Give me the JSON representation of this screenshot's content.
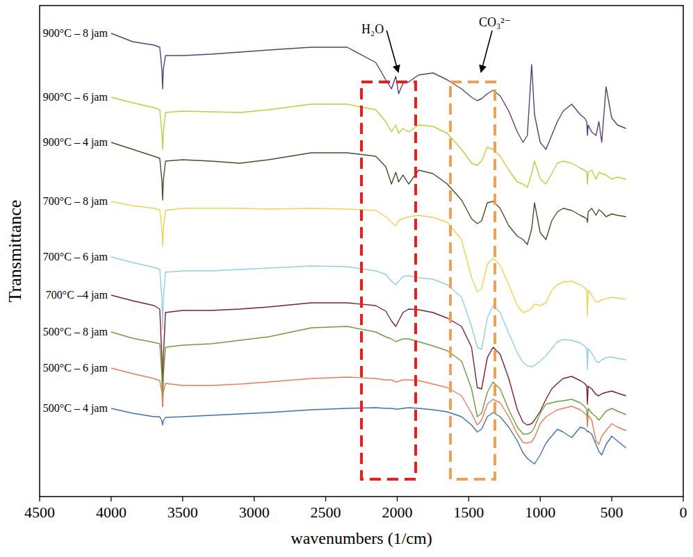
{
  "chart_data": {
    "type": "line",
    "x_label": "wavenumbers (1/cm)",
    "y_label": "Transmittance",
    "xlim": [
      4500,
      0
    ],
    "xticks": [
      4500,
      4000,
      3500,
      3000,
      2500,
      2000,
      1500,
      1000,
      500,
      0
    ],
    "ylim": [
      0,
      707
    ],
    "tick_labels": "x",
    "grid": false,
    "x": [
      4000,
      3850,
      3700,
      3660,
      3645,
      3640,
      3635,
      3620,
      3500,
      3300,
      3100,
      2900,
      2600,
      2350,
      2150,
      2080,
      2040,
      2010,
      1990,
      1960,
      1920,
      1850,
      1750,
      1650,
      1550,
      1480,
      1440,
      1410,
      1370,
      1330,
      1280,
      1220,
      1160,
      1120,
      1090,
      1060,
      1040,
      1000,
      960,
      920,
      880,
      840,
      780,
      720,
      690,
      675,
      670,
      665,
      640,
      610,
      590,
      570,
      540,
      500,
      460,
      400
    ],
    "series": [
      {
        "name": "900°C – 8 jam",
        "color": "#5a3d78",
        "values": [
          667,
          655,
          650,
          647,
          615,
          587,
          615,
          635,
          635,
          637,
          640,
          643,
          647,
          647,
          625,
          600,
          587,
          605,
          580,
          595,
          597,
          607,
          610,
          600,
          587,
          575,
          570,
          573,
          580,
          585,
          577,
          555,
          525,
          510,
          520,
          622,
          550,
          510,
          500,
          520,
          540,
          555,
          565,
          550,
          545,
          540,
          520,
          535,
          525,
          520,
          540,
          510,
          590,
          545,
          535,
          530
        ]
      },
      {
        "name": "900°C – 6 jam",
        "color": "#b5d335",
        "values": [
          575,
          567,
          560,
          557,
          525,
          500,
          525,
          553,
          555,
          554,
          553,
          557,
          565,
          565,
          557,
          540,
          525,
          535,
          523,
          530,
          525,
          535,
          533,
          523,
          500,
          480,
          477,
          483,
          503,
          500,
          490,
          470,
          453,
          450,
          445,
          465,
          483,
          457,
          450,
          465,
          480,
          483,
          480,
          473,
          470,
          467,
          450,
          467,
          470,
          457,
          467,
          465,
          463,
          457,
          460,
          457
        ]
      },
      {
        "name": "900°C – 4 jam",
        "color": "#4b4b2c",
        "values": [
          510,
          500,
          490,
          487,
          455,
          427,
          455,
          483,
          485,
          483,
          480,
          485,
          495,
          495,
          490,
          475,
          450,
          467,
          453,
          463,
          450,
          470,
          465,
          450,
          427,
          400,
          393,
          397,
          423,
          425,
          415,
          390,
          375,
          370,
          363,
          385,
          423,
          380,
          370,
          397,
          410,
          415,
          412,
          405,
          402,
          400,
          395,
          410,
          415,
          405,
          413,
          410,
          403,
          407,
          405,
          403
        ]
      },
      {
        "name": "700°C – 8 jam",
        "color": "#f2d24a",
        "values": [
          425,
          419,
          415,
          413,
          385,
          360,
          385,
          412,
          415,
          415,
          415,
          414,
          415,
          414,
          412,
          403,
          395,
          390,
          397,
          400,
          403,
          405,
          402,
          395,
          370,
          315,
          295,
          299,
          335,
          343,
          333,
          305,
          275,
          265,
          267,
          271,
          277,
          275,
          279,
          297,
          305,
          309,
          310,
          305,
          301,
          297,
          260,
          297,
          290,
          280,
          281,
          283,
          285,
          287,
          286,
          284
        ]
      },
      {
        "name": "700°C – 6 jam",
        "color": "#8fcfec",
        "values": [
          345,
          337,
          330,
          327,
          285,
          240,
          285,
          323,
          325,
          325,
          327,
          329,
          332,
          331,
          325,
          320,
          310,
          305,
          310,
          317,
          318,
          315,
          313,
          305,
          287,
          245,
          215,
          212,
          257,
          275,
          265,
          235,
          207,
          193,
          188,
          187,
          189,
          195,
          203,
          213,
          223,
          226,
          225,
          221,
          217,
          213,
          183,
          213,
          207,
          195,
          193,
          197,
          200,
          201,
          199,
          197
        ]
      },
      {
        "name": "700°C –4 jam",
        "color": "#7b1e33",
        "values": [
          290,
          282,
          275,
          270,
          200,
          130,
          200,
          265,
          268,
          268,
          270,
          273,
          279,
          279,
          275,
          267,
          253,
          245,
          253,
          265,
          270,
          269,
          265,
          257,
          245,
          215,
          157,
          155,
          200,
          215,
          205,
          170,
          125,
          107,
          103,
          105,
          110,
          123,
          140,
          155,
          163,
          170,
          173,
          167,
          163,
          159,
          133,
          159,
          155,
          147,
          145,
          148,
          150,
          152,
          149,
          145
        ]
      },
      {
        "name": "500°C – 8 jam",
        "color": "#6e9c3c",
        "values": [
          237,
          228,
          222,
          220,
          175,
          130,
          175,
          215,
          218,
          220,
          225,
          230,
          243,
          245,
          237,
          230,
          227,
          223,
          225,
          227,
          227,
          223,
          217,
          210,
          195,
          155,
          115,
          120,
          150,
          165,
          155,
          125,
          100,
          90,
          90,
          93,
          100,
          120,
          133,
          135,
          137,
          138,
          140,
          135,
          130,
          125,
          103,
          127,
          120,
          115,
          110,
          115,
          123,
          127,
          123,
          118
        ]
      },
      {
        "name": "500°C – 6 jam",
        "color": "#ee7a55",
        "values": [
          185,
          177,
          170,
          167,
          150,
          130,
          150,
          163,
          160,
          160,
          162,
          165,
          170,
          172,
          170,
          168,
          168,
          165,
          166,
          168,
          168,
          167,
          162,
          157,
          145,
          120,
          103,
          110,
          133,
          140,
          135,
          115,
          90,
          78,
          77,
          79,
          85,
          105,
          115,
          120,
          125,
          127,
          130,
          125,
          120,
          117,
          100,
          117,
          110,
          80,
          75,
          87,
          95,
          105,
          100,
          95
        ]
      },
      {
        "name": "500°C – 4 jam",
        "color": "#3d6fb0",
        "values": [
          127,
          120,
          115,
          115,
          109,
          103,
          109,
          114,
          115,
          117,
          119,
          121,
          125,
          127,
          128,
          127,
          127,
          126,
          126,
          127,
          128,
          127,
          125,
          122,
          115,
          103,
          93,
          97,
          115,
          121,
          115,
          100,
          80,
          63,
          55,
          50,
          47,
          60,
          77,
          87,
          97,
          93,
          85,
          100,
          98,
          95,
          93,
          94,
          90,
          75,
          65,
          60,
          75,
          87,
          80,
          70
        ]
      }
    ],
    "annotations": [
      {
        "text": "H₂O",
        "x": [
          2250,
          1871
        ],
        "y": [
          25,
          597
        ],
        "color": "#ee1c1c",
        "line_style": "dashed"
      },
      {
        "text": "CO₃²⁻",
        "x": [
          1628,
          1317
        ],
        "y": [
          25,
          597
        ],
        "color": "#f0a050",
        "line_style": "dashed"
      }
    ]
  }
}
